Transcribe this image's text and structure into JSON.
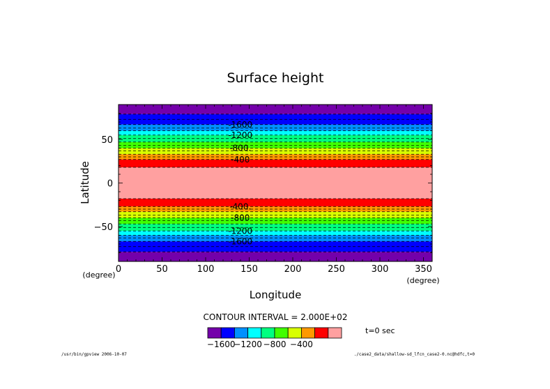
{
  "chart_data": {
    "type": "heatmap",
    "title": "Surface height",
    "xlabel": "Longitude",
    "ylabel": "Latitude",
    "x_units": "(degree)",
    "y_units": "(degree)",
    "xlim": [
      0,
      360
    ],
    "ylim": [
      -90,
      90
    ],
    "x_ticks": [
      0,
      50,
      100,
      150,
      200,
      250,
      300,
      350
    ],
    "y_ticks": [
      -50,
      0,
      50
    ],
    "bands": [
      {
        "lat_from": 79,
        "lat_to": 90,
        "color": "#7400aa"
      },
      {
        "lat_from": 67,
        "lat_to": 79,
        "color": "#0000ff"
      },
      {
        "lat_from": 60,
        "lat_to": 67,
        "color": "#0090ff"
      },
      {
        "lat_from": 55,
        "lat_to": 60,
        "color": "#00ffff"
      },
      {
        "lat_from": 47,
        "lat_to": 55,
        "color": "#00ff80"
      },
      {
        "lat_from": 40,
        "lat_to": 47,
        "color": "#40ff00"
      },
      {
        "lat_from": 33,
        "lat_to": 40,
        "color": "#d8ff00"
      },
      {
        "lat_from": 27,
        "lat_to": 33,
        "color": "#ff9900"
      },
      {
        "lat_from": 18,
        "lat_to": 27,
        "color": "#ff0000"
      },
      {
        "lat_from": -18,
        "lat_to": 18,
        "color": "#ffa0a0"
      },
      {
        "lat_from": -27,
        "lat_to": -18,
        "color": "#ff0000"
      },
      {
        "lat_from": -33,
        "lat_to": -27,
        "color": "#ff9900"
      },
      {
        "lat_from": -40,
        "lat_to": -33,
        "color": "#d8ff00"
      },
      {
        "lat_from": -47,
        "lat_to": -40,
        "color": "#40ff00"
      },
      {
        "lat_from": -55,
        "lat_to": -47,
        "color": "#00ff80"
      },
      {
        "lat_from": -60,
        "lat_to": -55,
        "color": "#00ffff"
      },
      {
        "lat_from": -67,
        "lat_to": -60,
        "color": "#0090ff"
      },
      {
        "lat_from": -79,
        "lat_to": -67,
        "color": "#0000ff"
      },
      {
        "lat_from": -90,
        "lat_to": -79,
        "color": "#7400aa"
      }
    ],
    "dashed_contours_lat": [
      79,
      73,
      67,
      63,
      60,
      55,
      51,
      47,
      43,
      40,
      37,
      33,
      30,
      27,
      18,
      -18,
      -27,
      -30,
      -33,
      -37,
      -40,
      -43,
      -47,
      -51,
      -55,
      -60,
      -63,
      -67,
      -73,
      -79
    ],
    "contour_labels": [
      {
        "text": "-1600",
        "lat": 67,
        "lon": 135
      },
      {
        "text": "-1200",
        "lat": 55,
        "lon": 135
      },
      {
        "text": "-800.",
        "lat": 40,
        "lon": 135
      },
      {
        "text": "-400",
        "lat": 27,
        "lon": 135
      },
      {
        "text": "-400.",
        "lat": -27,
        "lon": 135
      },
      {
        "text": "-800",
        "lat": -40,
        "lon": 135
      },
      {
        "text": "-1200",
        "lat": -55,
        "lon": 135
      },
      {
        "text": "-1600",
        "lat": -67,
        "lon": 135
      }
    ],
    "contour_interval_text": "CONTOUR INTERVAL = 2.000E+02",
    "colorbar": {
      "colors": [
        "#7400aa",
        "#0000ff",
        "#0090ff",
        "#00ffff",
        "#00ff80",
        "#40ff00",
        "#d8ff00",
        "#ff9900",
        "#ff0000",
        "#ffa0a0"
      ],
      "labels": [
        "-1600",
        "-1200",
        "-800",
        "-400"
      ]
    }
  },
  "time_label": "t=0 sec",
  "footer_left": "/usr/bin/gpview  2006-10-07",
  "footer_right": "./case2_data/shallow-sd_lfcn_case2-0.nc@hdfc,t=0"
}
